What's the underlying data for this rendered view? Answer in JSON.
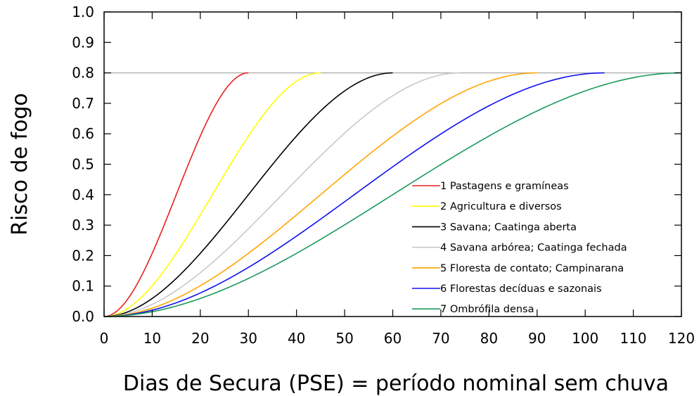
{
  "chart_data": {
    "type": "line",
    "xlabel": "Dias  de  Secura (PSE)  =  período nominal sem chuva",
    "ylabel": "Risco de fogo",
    "xlim": [
      0,
      120
    ],
    "ylim": [
      0,
      1.0
    ],
    "x_ticks": [
      0,
      10,
      20,
      30,
      40,
      50,
      60,
      70,
      80,
      90,
      100,
      110,
      120
    ],
    "x_tick_labels": [
      "0",
      "10",
      "20",
      "30",
      "40",
      "50",
      "60",
      "70",
      "80",
      "90",
      "100",
      "110",
      "120"
    ],
    "y_ticks": [
      0,
      0.1,
      0.2,
      0.3,
      0.4,
      0.5,
      0.6,
      0.7,
      0.8,
      0.9,
      1.0
    ],
    "y_tick_labels": [
      "0.0",
      "0.1",
      "0.2",
      "0.3",
      "0.4",
      "0.5",
      "0.6",
      "0.7",
      "0.8",
      "0.9",
      "1.0"
    ],
    "reference_line": {
      "y": 0.8,
      "color": "#aaaaaa"
    },
    "grid": false,
    "legend_position": "center-right",
    "series": [
      {
        "name": "1 Pastagens e gramíneas",
        "color": "#e8201e",
        "x_end": 30,
        "x": [
          0,
          3,
          6,
          9,
          12,
          15,
          18,
          21,
          24,
          27,
          30
        ],
        "y": [
          0.0,
          0.016,
          0.077,
          0.182,
          0.32,
          0.47,
          0.618,
          0.722,
          0.78,
          0.798,
          0.8
        ]
      },
      {
        "name": "2 Agricultura e diversos",
        "color": "#ffff00",
        "x_end": 45,
        "x": [
          0,
          4.5,
          9,
          13.5,
          18,
          22.5,
          27,
          31.5,
          36,
          40.5,
          45
        ],
        "y": [
          0.0,
          0.016,
          0.077,
          0.182,
          0.32,
          0.47,
          0.618,
          0.722,
          0.78,
          0.798,
          0.8
        ]
      },
      {
        "name": "3 Savana; Caatinga aberta",
        "color": "#000000",
        "x_end": 60,
        "x": [
          0,
          6,
          12,
          18,
          24,
          30,
          36,
          42,
          48,
          54,
          60
        ],
        "y": [
          0.0,
          0.016,
          0.077,
          0.182,
          0.32,
          0.47,
          0.618,
          0.722,
          0.78,
          0.798,
          0.8
        ]
      },
      {
        "name": "4 Savana arbórea; Caatinga fechada",
        "color": "#c8c8c8",
        "x_end": 74,
        "x": [
          0,
          7.4,
          14.8,
          22.2,
          29.6,
          37,
          44.4,
          51.8,
          59.2,
          66.6,
          74
        ],
        "y": [
          0.0,
          0.016,
          0.077,
          0.182,
          0.32,
          0.47,
          0.618,
          0.722,
          0.78,
          0.798,
          0.8
        ]
      },
      {
        "name": "5 Floresta de contato; Campinarana",
        "color": "#ffa500",
        "x_end": 90,
        "x": [
          0,
          9,
          18,
          27,
          36,
          45,
          54,
          63,
          72,
          81,
          90
        ],
        "y": [
          0.0,
          0.016,
          0.077,
          0.182,
          0.32,
          0.47,
          0.618,
          0.722,
          0.78,
          0.798,
          0.8
        ]
      },
      {
        "name": "6 Florestas decíduas e sazonais",
        "color": "#1010ee",
        "x_end": 104,
        "x": [
          0,
          10.4,
          20.8,
          31.2,
          41.6,
          52,
          62.4,
          72.8,
          83.2,
          93.6,
          104
        ],
        "y": [
          0.0,
          0.016,
          0.077,
          0.182,
          0.32,
          0.47,
          0.618,
          0.722,
          0.78,
          0.798,
          0.8
        ]
      },
      {
        "name": "7 Ombrófila densa",
        "color": "#1a9a5a",
        "x_end": 120,
        "x": [
          0,
          12,
          24,
          36,
          48,
          60,
          72,
          84,
          96,
          108,
          120
        ],
        "y": [
          0.0,
          0.016,
          0.077,
          0.182,
          0.32,
          0.47,
          0.618,
          0.722,
          0.78,
          0.798,
          0.8
        ]
      }
    ]
  }
}
